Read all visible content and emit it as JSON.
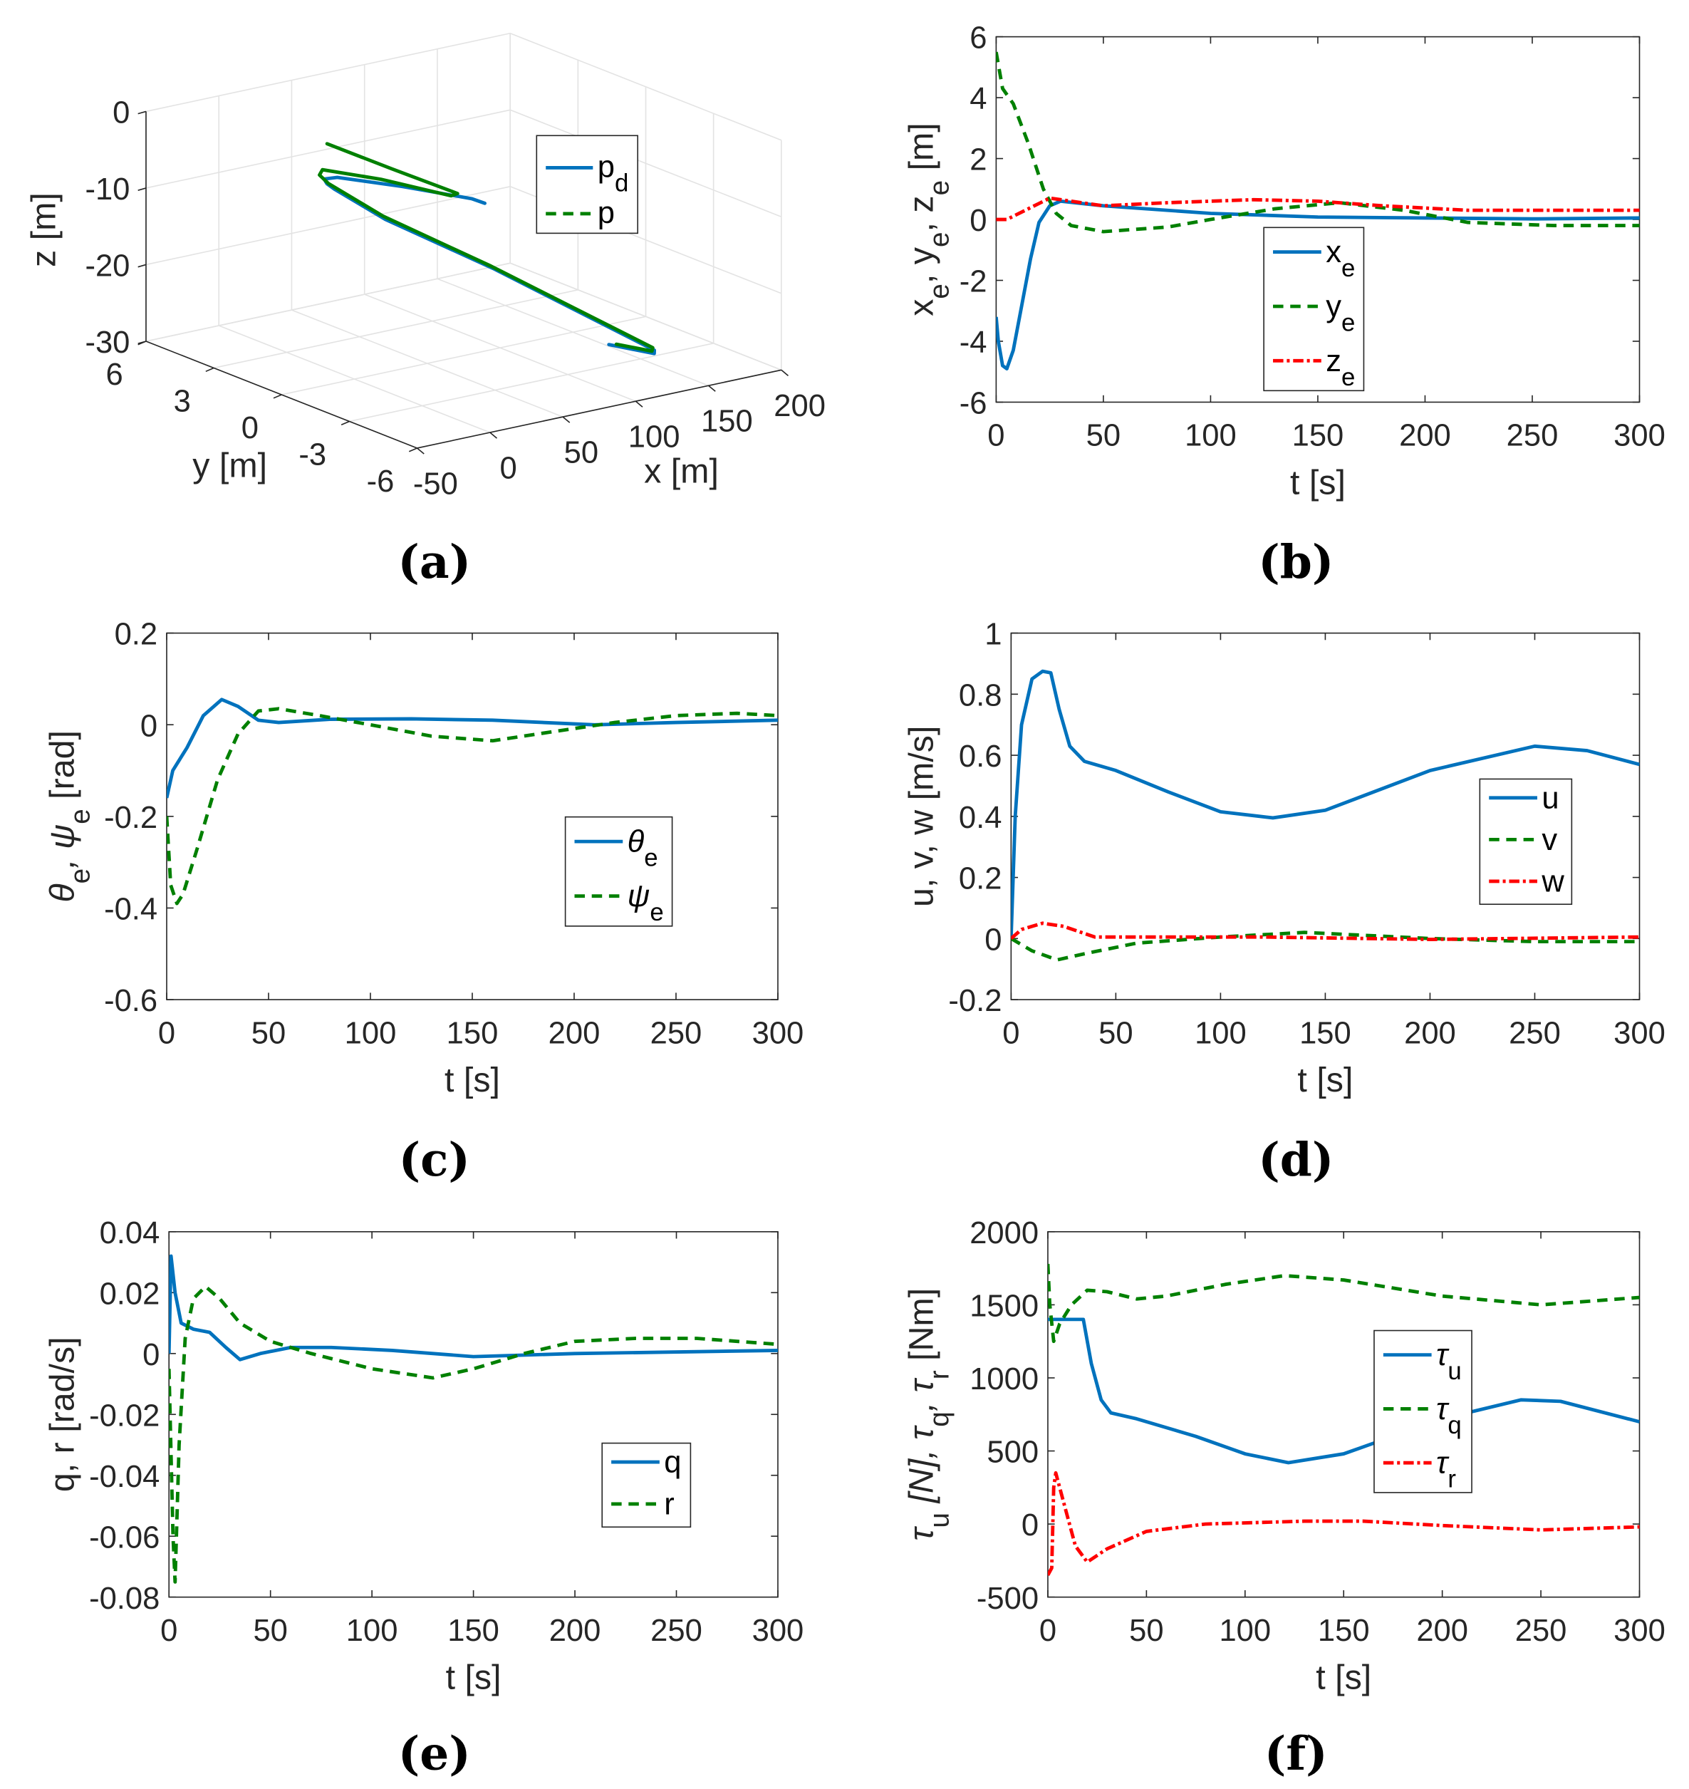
{
  "colors": {
    "blue": "#0072BD",
    "green": "#008000",
    "red": "#FF0000"
  },
  "chart_data": [
    {
      "id": "a",
      "type": "line3d",
      "panel_label": "(a)",
      "xlabel": "x [m]",
      "ylabel": "y [m]",
      "zlabel": "z [m]",
      "xlim": [
        -50,
        200
      ],
      "ylim": [
        -6,
        6
      ],
      "zlim": [
        -30,
        0
      ],
      "xticks": [
        -50,
        0,
        50,
        100,
        150,
        200
      ],
      "yticks": [
        6,
        3,
        0,
        -3,
        -6
      ],
      "zticks": [
        0,
        -10,
        -20,
        -30
      ],
      "grid": true,
      "legend_position": "upper-right",
      "series": [
        {
          "name": "p_d",
          "style": "solid",
          "color": "blue",
          "x": [
            105,
            100,
            70,
            41,
            35,
            37,
            41,
            60,
            100,
            148.5,
            150,
            139
          ],
          "y": [
            1.0,
            1.26,
            2.4,
            3.4,
            3.6,
            3.6,
            3.5,
            2.5,
            0.3,
            -3.7,
            -3.6,
            -2.3
          ],
          "z": [
            -12.5,
            -12,
            -10.5,
            -9.3,
            -9.5,
            -10.2,
            -11,
            -14.5,
            -20,
            -28,
            -28.6,
            -28.5
          ]
        },
        {
          "name": "p",
          "style": "dashed",
          "color": "green",
          "x": [
            20,
            55,
            91,
            88,
            60,
            37,
            35,
            38,
            60,
            100,
            149,
            150,
            141
          ],
          "y": [
            2.5,
            1.9,
            1.3,
            1.4,
            2.7,
            3.8,
            3.8,
            3.6,
            2.6,
            0.4,
            -3.6,
            -3.5,
            -2.5
          ],
          "z": [
            -3,
            -7,
            -11,
            -11.3,
            -9.5,
            -8.6,
            -9.2,
            -10.2,
            -14.2,
            -19.8,
            -27.8,
            -28.4,
            -28.3
          ]
        }
      ]
    },
    {
      "id": "b",
      "type": "line",
      "panel_label": "(b)",
      "xlabel": "t [s]",
      "ylabel": "x_e, y_e, z_e [m]",
      "xlim": [
        0,
        300
      ],
      "ylim": [
        -6,
        6
      ],
      "xticks": [
        0,
        50,
        100,
        150,
        200,
        250,
        300
      ],
      "yticks": [
        -6,
        -4,
        -2,
        0,
        2,
        4,
        6
      ],
      "legend_position": "center",
      "series": [
        {
          "name": "x_e",
          "style": "solid",
          "color": "blue",
          "t": [
            0,
            1,
            3,
            5,
            8,
            12,
            16,
            20,
            25,
            30,
            50,
            100,
            150,
            200,
            250,
            300
          ],
          "y": [
            -3.2,
            -4.0,
            -4.8,
            -4.9,
            -4.3,
            -2.8,
            -1.3,
            -0.1,
            0.45,
            0.6,
            0.45,
            0.2,
            0.08,
            0.05,
            0.02,
            0.05
          ]
        },
        {
          "name": "y_e",
          "style": "dashed",
          "color": "green",
          "t": [
            0,
            3,
            8,
            15,
            22,
            28,
            35,
            50,
            80,
            100,
            130,
            160,
            190,
            220,
            260,
            300
          ],
          "y": [
            5.5,
            4.3,
            3.8,
            2.5,
            1.0,
            0.2,
            -0.2,
            -0.4,
            -0.25,
            0.0,
            0.35,
            0.55,
            0.3,
            -0.1,
            -0.2,
            -0.2
          ]
        },
        {
          "name": "z_e",
          "style": "dashdot",
          "color": "red",
          "t": [
            0,
            5,
            15,
            25,
            35,
            50,
            80,
            120,
            150,
            180,
            220,
            260,
            300
          ],
          "y": [
            0.0,
            0.0,
            0.35,
            0.7,
            0.6,
            0.45,
            0.55,
            0.65,
            0.6,
            0.45,
            0.3,
            0.3,
            0.3
          ]
        }
      ]
    },
    {
      "id": "c",
      "type": "line",
      "panel_label": "(c)",
      "xlabel": "t [s]",
      "ylabel": "θ_e, ψ_e [rad]",
      "xlim": [
        0,
        300
      ],
      "ylim": [
        -0.6,
        0.2
      ],
      "xticks": [
        0,
        50,
        100,
        150,
        200,
        250,
        300
      ],
      "yticks": [
        -0.6,
        -0.4,
        -0.2,
        0,
        0.2
      ],
      "legend_position": "center-right",
      "series": [
        {
          "name": "θ_e",
          "style": "solid",
          "color": "blue",
          "t": [
            0,
            3,
            10,
            18,
            27,
            35,
            45,
            55,
            80,
            120,
            160,
            210,
            250,
            300
          ],
          "y": [
            -0.16,
            -0.1,
            -0.05,
            0.02,
            0.055,
            0.04,
            0.01,
            0.005,
            0.012,
            0.013,
            0.01,
            0.0,
            0.005,
            0.01
          ]
        },
        {
          "name": "ψ_e",
          "style": "dashed",
          "color": "green",
          "t": [
            0,
            2,
            5,
            8,
            15,
            25,
            35,
            45,
            55,
            75,
            100,
            130,
            160,
            190,
            220,
            250,
            280,
            300
          ],
          "y": [
            -0.2,
            -0.35,
            -0.39,
            -0.37,
            -0.27,
            -0.12,
            -0.02,
            0.03,
            0.035,
            0.02,
            0.0,
            -0.025,
            -0.035,
            -0.015,
            0.005,
            0.02,
            0.025,
            0.02
          ]
        }
      ]
    },
    {
      "id": "d",
      "type": "line",
      "panel_label": "(d)",
      "xlabel": "t [s]",
      "ylabel": "u, v, w [m/s]",
      "xlim": [
        0,
        300
      ],
      "ylim": [
        -0.2,
        1
      ],
      "xticks": [
        0,
        50,
        100,
        150,
        200,
        250,
        300
      ],
      "yticks": [
        -0.2,
        0,
        0.2,
        0.4,
        0.6,
        0.8,
        1
      ],
      "legend_position": "center-right",
      "series": [
        {
          "name": "u",
          "style": "solid",
          "color": "blue",
          "t": [
            0,
            2,
            5,
            10,
            15,
            19,
            23,
            28,
            35,
            50,
            75,
            100,
            125,
            150,
            200,
            250,
            275,
            300
          ],
          "y": [
            0.0,
            0.4,
            0.7,
            0.85,
            0.875,
            0.87,
            0.75,
            0.63,
            0.58,
            0.55,
            0.48,
            0.415,
            0.395,
            0.42,
            0.55,
            0.63,
            0.615,
            0.57
          ]
        },
        {
          "name": "v",
          "style": "dashed",
          "color": "green",
          "t": [
            0,
            10,
            22,
            35,
            60,
            100,
            140,
            200,
            250,
            300
          ],
          "y": [
            0,
            -0.04,
            -0.07,
            -0.05,
            -0.015,
            0.005,
            0.02,
            0.0,
            -0.01,
            -0.01
          ]
        },
        {
          "name": "w",
          "style": "dashdot",
          "color": "red",
          "t": [
            0,
            5,
            15,
            25,
            40,
            80,
            120,
            200,
            300
          ],
          "y": [
            0,
            0.03,
            0.05,
            0.04,
            0.005,
            0.005,
            0.005,
            -0.003,
            0.005
          ]
        }
      ]
    },
    {
      "id": "e",
      "type": "line",
      "panel_label": "(e)",
      "xlabel": "t [s]",
      "ylabel": "q, r [rad/s]",
      "xlim": [
        0,
        300
      ],
      "ylim": [
        -0.08,
        0.04
      ],
      "xticks": [
        0,
        50,
        100,
        150,
        200,
        250,
        300
      ],
      "yticks": [
        -0.08,
        -0.06,
        -0.04,
        -0.02,
        0,
        0.02,
        0.04
      ],
      "legend_position": "lower-right",
      "series": [
        {
          "name": "q",
          "style": "solid",
          "color": "blue",
          "t": [
            0,
            1,
            3,
            6,
            12,
            20,
            28,
            35,
            45,
            60,
            80,
            110,
            150,
            200,
            300
          ],
          "y": [
            0.0,
            0.032,
            0.02,
            0.01,
            0.008,
            0.007,
            0.002,
            -0.002,
            0.0,
            0.002,
            0.002,
            0.001,
            -0.001,
            0.0,
            0.001
          ]
        },
        {
          "name": "r",
          "style": "dashed",
          "color": "green",
          "t": [
            0,
            2,
            3,
            5,
            8,
            12,
            18,
            25,
            35,
            50,
            70,
            100,
            130,
            150,
            175,
            200,
            230,
            260,
            300
          ],
          "y": [
            -0.005,
            -0.06,
            -0.075,
            -0.03,
            0.005,
            0.018,
            0.022,
            0.018,
            0.01,
            0.004,
            0.0,
            -0.005,
            -0.008,
            -0.005,
            0.0,
            0.004,
            0.005,
            0.005,
            0.003
          ]
        }
      ]
    },
    {
      "id": "f",
      "type": "line",
      "panel_label": "(f)",
      "xlabel": "t [s]",
      "ylabel": "τ_u [N], τ_q, τ_r [Nm]",
      "xlim": [
        0,
        300
      ],
      "ylim": [
        -500,
        2000
      ],
      "xticks": [
        0,
        50,
        100,
        150,
        200,
        250,
        300
      ],
      "yticks": [
        -500,
        0,
        500,
        1000,
        1500,
        2000
      ],
      "legend_position": "center",
      "series": [
        {
          "name": "τ_u",
          "style": "solid",
          "color": "blue",
          "t": [
            0,
            18,
            22,
            27,
            32,
            45,
            75,
            100,
            122,
            150,
            200,
            240,
            260,
            300
          ],
          "y": [
            1400,
            1400,
            1100,
            850,
            760,
            720,
            600,
            480,
            420,
            480,
            720,
            850,
            840,
            700
          ]
        },
        {
          "name": "τ_q",
          "style": "dashed",
          "color": "green",
          "t": [
            0,
            1,
            3,
            6,
            12,
            20,
            30,
            45,
            60,
            90,
            120,
            150,
            200,
            250,
            300
          ],
          "y": [
            1780,
            1500,
            1250,
            1370,
            1500,
            1600,
            1590,
            1540,
            1560,
            1640,
            1700,
            1670,
            1560,
            1500,
            1550
          ]
        },
        {
          "name": "τ_r",
          "style": "dashdot",
          "color": "red",
          "t": [
            0,
            2,
            3,
            4,
            8,
            14,
            20,
            30,
            50,
            80,
            130,
            160,
            200,
            250,
            300
          ],
          "y": [
            -350,
            -300,
            250,
            350,
            150,
            -150,
            -260,
            -170,
            -50,
            0,
            20,
            20,
            -10,
            -40,
            -20
          ]
        }
      ]
    }
  ]
}
